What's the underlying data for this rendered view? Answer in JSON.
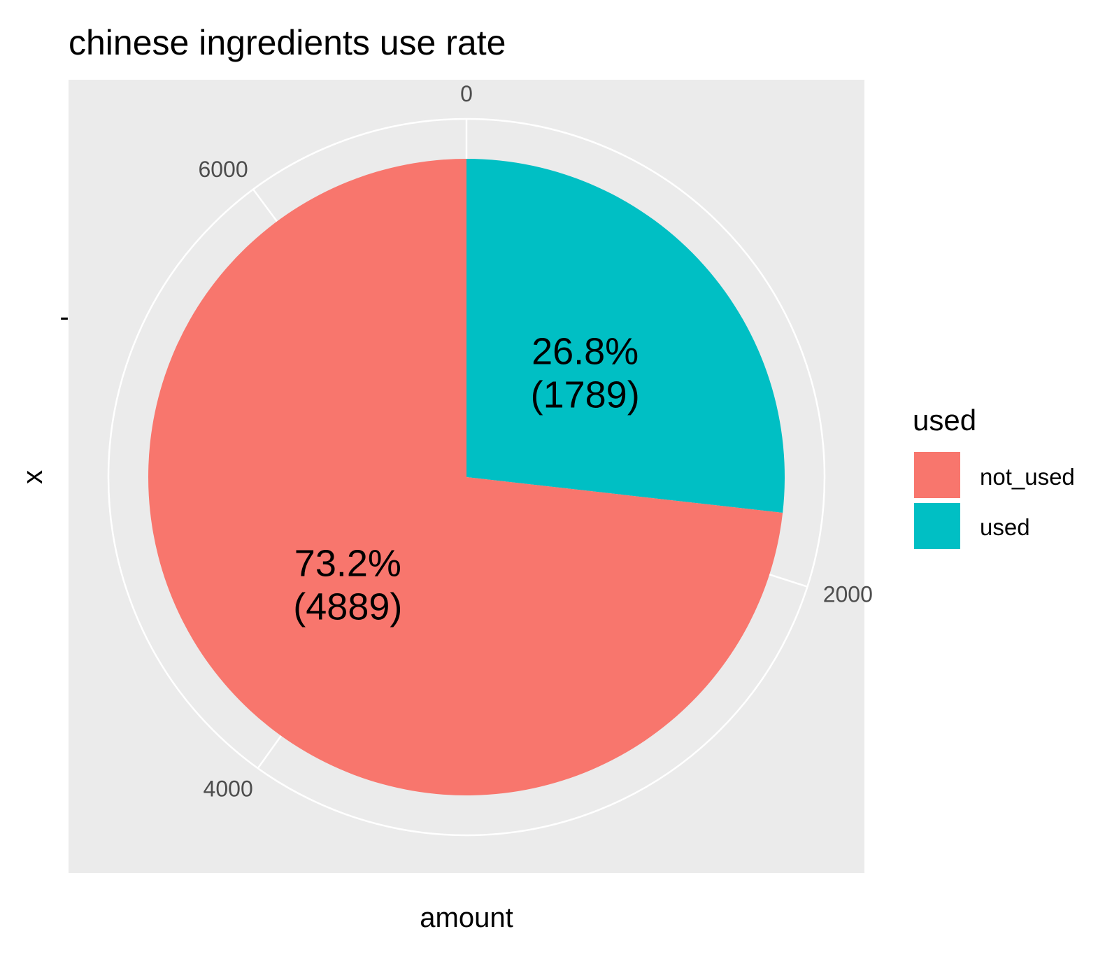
{
  "chart_data": {
    "type": "pie",
    "title": "chinese ingredients use rate",
    "xlabel": "amount",
    "ylabel": "x",
    "categories": [
      "not_used",
      "used"
    ],
    "values": [
      4889,
      1789
    ],
    "slice_labels": [
      {
        "percent": "73.2%",
        "count": "(4889)"
      },
      {
        "percent": "26.8%",
        "count": "(1789)"
      }
    ],
    "radial_axis_ticks": [
      "0",
      "2000",
      "4000",
      "6000"
    ],
    "radial_axis_tick_values": [
      0,
      2000,
      4000,
      6000
    ],
    "y_axis_tick": "-",
    "legend": {
      "title": "used",
      "items": [
        "not_used",
        "used"
      ],
      "placement": "right"
    },
    "colors": {
      "not_used": "#F8766D",
      "used": "#00BFC4",
      "panel_background": "#EBEBEB",
      "grid": "#FFFFFF"
    },
    "grid": true
  }
}
